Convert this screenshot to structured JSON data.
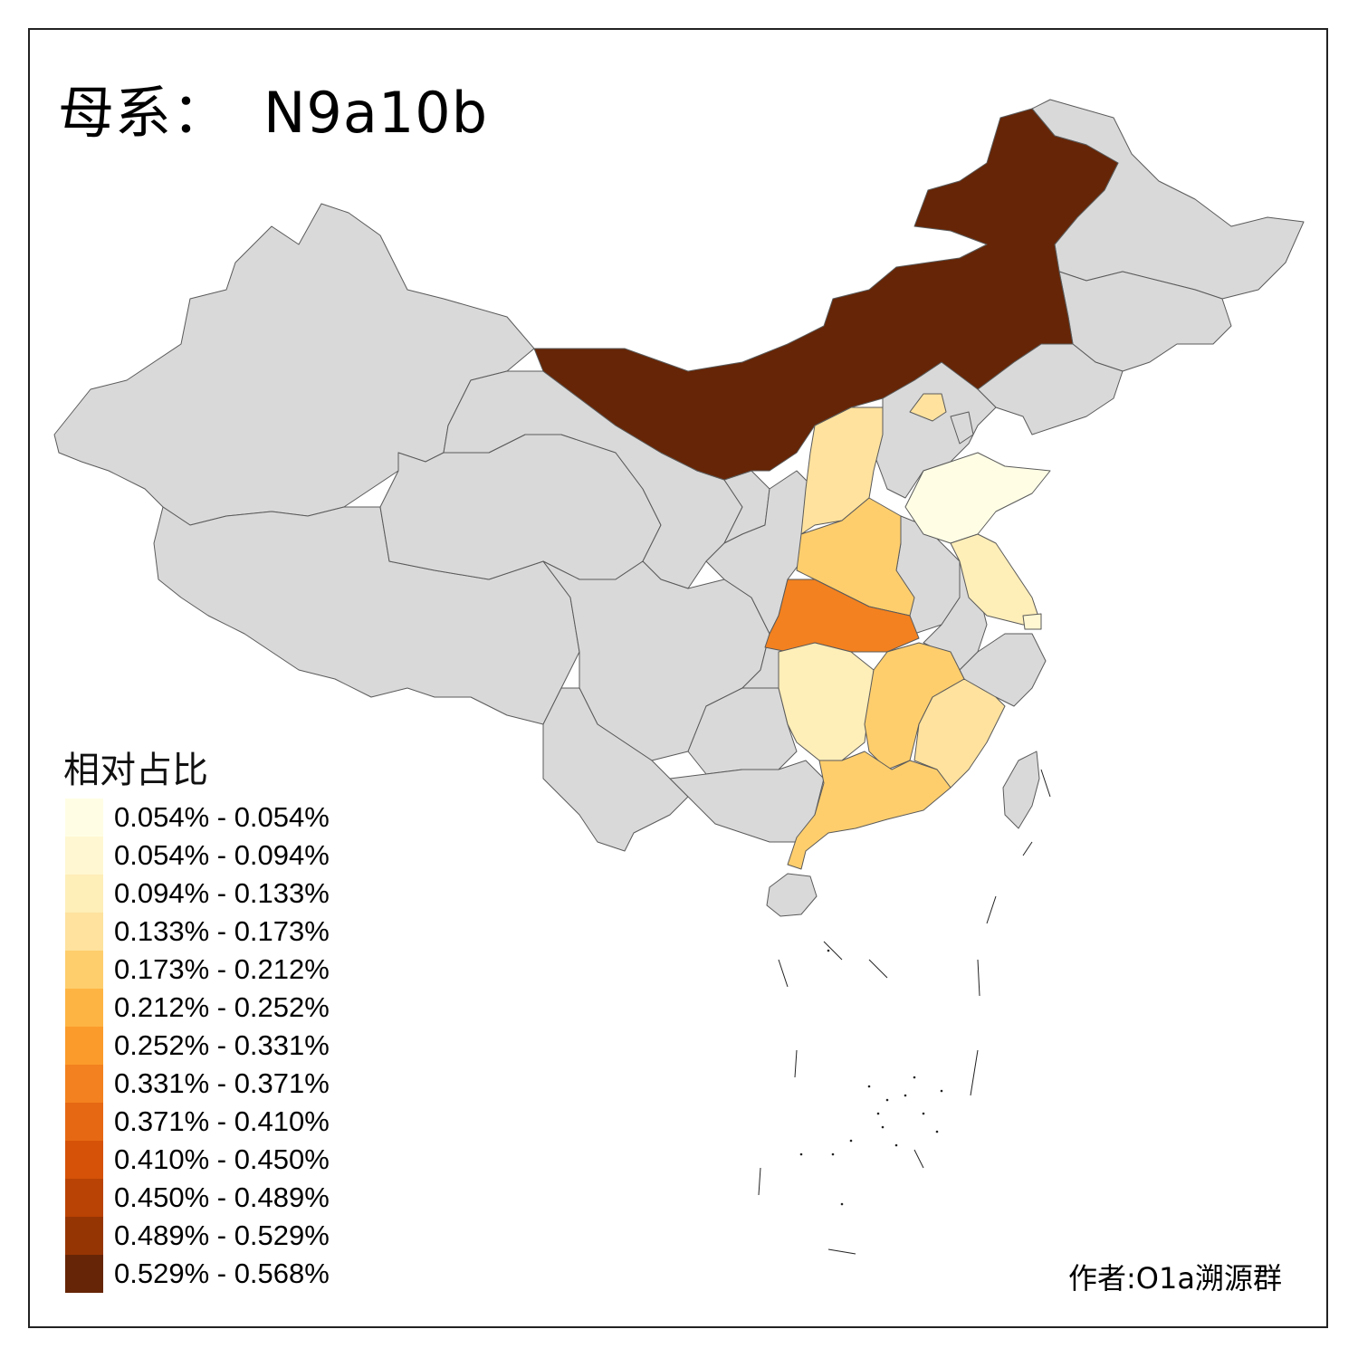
{
  "title": {
    "label": "母系：",
    "haplogroup": "N9a10b"
  },
  "credit": "作者:O1a溯源群",
  "legend": {
    "title": "相对占比",
    "items": [
      {
        "range": "0.054% - 0.054%",
        "color": "#FFFEE5"
      },
      {
        "range": "0.054% - 0.094%",
        "color": "#FFF7D1"
      },
      {
        "range": "0.094% - 0.133%",
        "color": "#FEEEB8"
      },
      {
        "range": "0.133% - 0.173%",
        "color": "#FEE29E"
      },
      {
        "range": "0.173% - 0.212%",
        "color": "#FECE6D"
      },
      {
        "range": "0.212% - 0.252%",
        "color": "#FEB443"
      },
      {
        "range": "0.252% - 0.331%",
        "color": "#FB9B2B"
      },
      {
        "range": "0.331% - 0.371%",
        "color": "#F3811F"
      },
      {
        "range": "0.371% - 0.410%",
        "color": "#E66813"
      },
      {
        "range": "0.410% - 0.450%",
        "color": "#D55208"
      },
      {
        "range": "0.450% - 0.489%",
        "color": "#B94304"
      },
      {
        "range": "0.489% - 0.529%",
        "color": "#963504"
      },
      {
        "range": "0.529% - 0.568%",
        "color": "#662506"
      }
    ]
  },
  "map": {
    "no_data_color": "#D9D9D9",
    "border_color": "#555555"
  }
}
